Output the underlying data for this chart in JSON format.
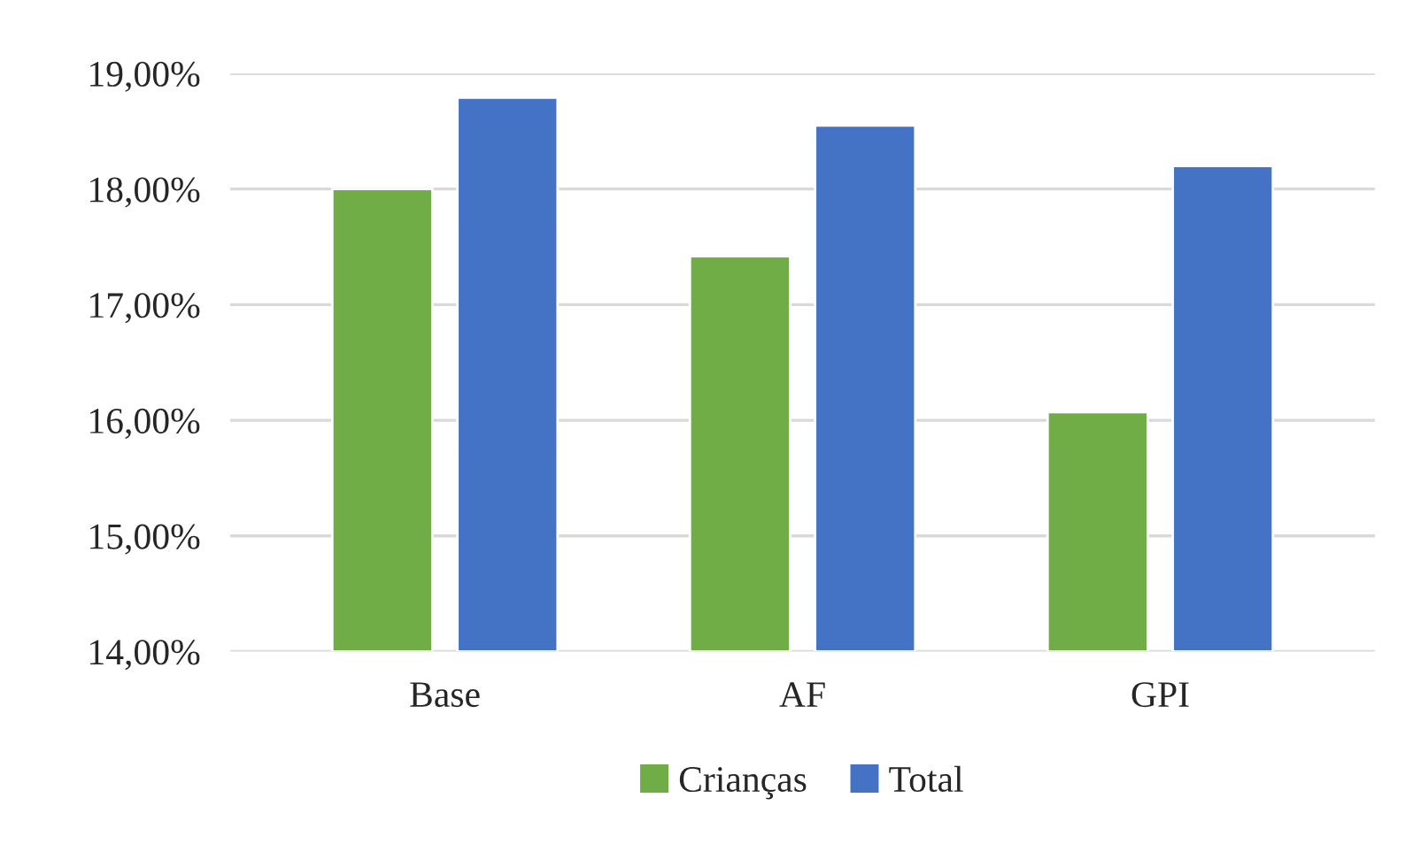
{
  "chart_data": {
    "type": "bar",
    "categories": [
      "Base",
      "AF",
      "GPI"
    ],
    "series": [
      {
        "name": "Crianças",
        "color": "#70ad47",
        "values": [
          18.0,
          17.42,
          16.07
        ]
      },
      {
        "name": "Total",
        "color": "#4472c4",
        "values": [
          18.79,
          18.55,
          18.2
        ]
      }
    ],
    "ylim": [
      14,
      19
    ],
    "yticks": [
      {
        "value": 14,
        "label": "14,00%"
      },
      {
        "value": 15,
        "label": "15,00%"
      },
      {
        "value": 16,
        "label": "16,00%"
      },
      {
        "value": 17,
        "label": "17,00%"
      },
      {
        "value": 18,
        "label": "18,00%"
      },
      {
        "value": 19,
        "label": "19,00%"
      }
    ],
    "grid": "y",
    "legend": "bottom"
  }
}
